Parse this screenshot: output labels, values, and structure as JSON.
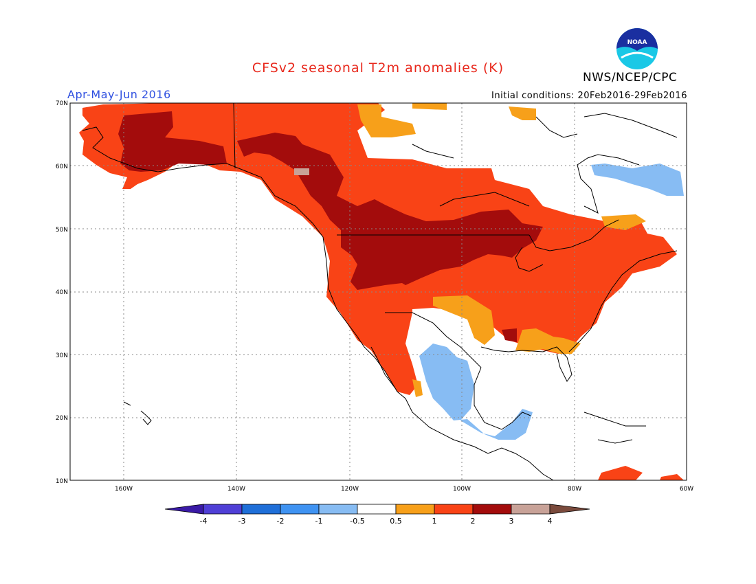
{
  "header": {
    "title": "CFSv2 seasonal T2m anomalies (K)",
    "season": "Apr-May-Jun 2016",
    "agency": "NWS/NCEP/CPC",
    "initial_conditions": "Initial conditions: 20Feb2016-29Feb2016",
    "logo_text": "NOAA"
  },
  "colors": {
    "title": "#e8281c",
    "season": "#2f50e0",
    "cat_lt_m4": "#3a1aa6",
    "cat_m4_m3": "#4f3fd6",
    "cat_m3_m2": "#1f6fd8",
    "cat_m2_m1": "#3f93f2",
    "cat_m1_m05": "#87bcf3",
    "cat_m05_05": "#ffffff",
    "cat_05_1": "#f7a01a",
    "cat_1_2": "#f94316",
    "cat_2_3": "#a30c0c",
    "cat_3_4": "#c8a298",
    "cat_gt_4": "#7a4a3c"
  },
  "map": {
    "lat_labels": [
      "70N",
      "60N",
      "50N",
      "40N",
      "30N",
      "20N",
      "10N"
    ],
    "lon_labels": [
      "160W",
      "140W",
      "120W",
      "100W",
      "80W",
      "60W"
    ]
  },
  "colorbar": {
    "labels": [
      "-4",
      "-3",
      "-2",
      "-1",
      "-0.5",
      "0.5",
      "1",
      "2",
      "3",
      "4"
    ]
  }
}
